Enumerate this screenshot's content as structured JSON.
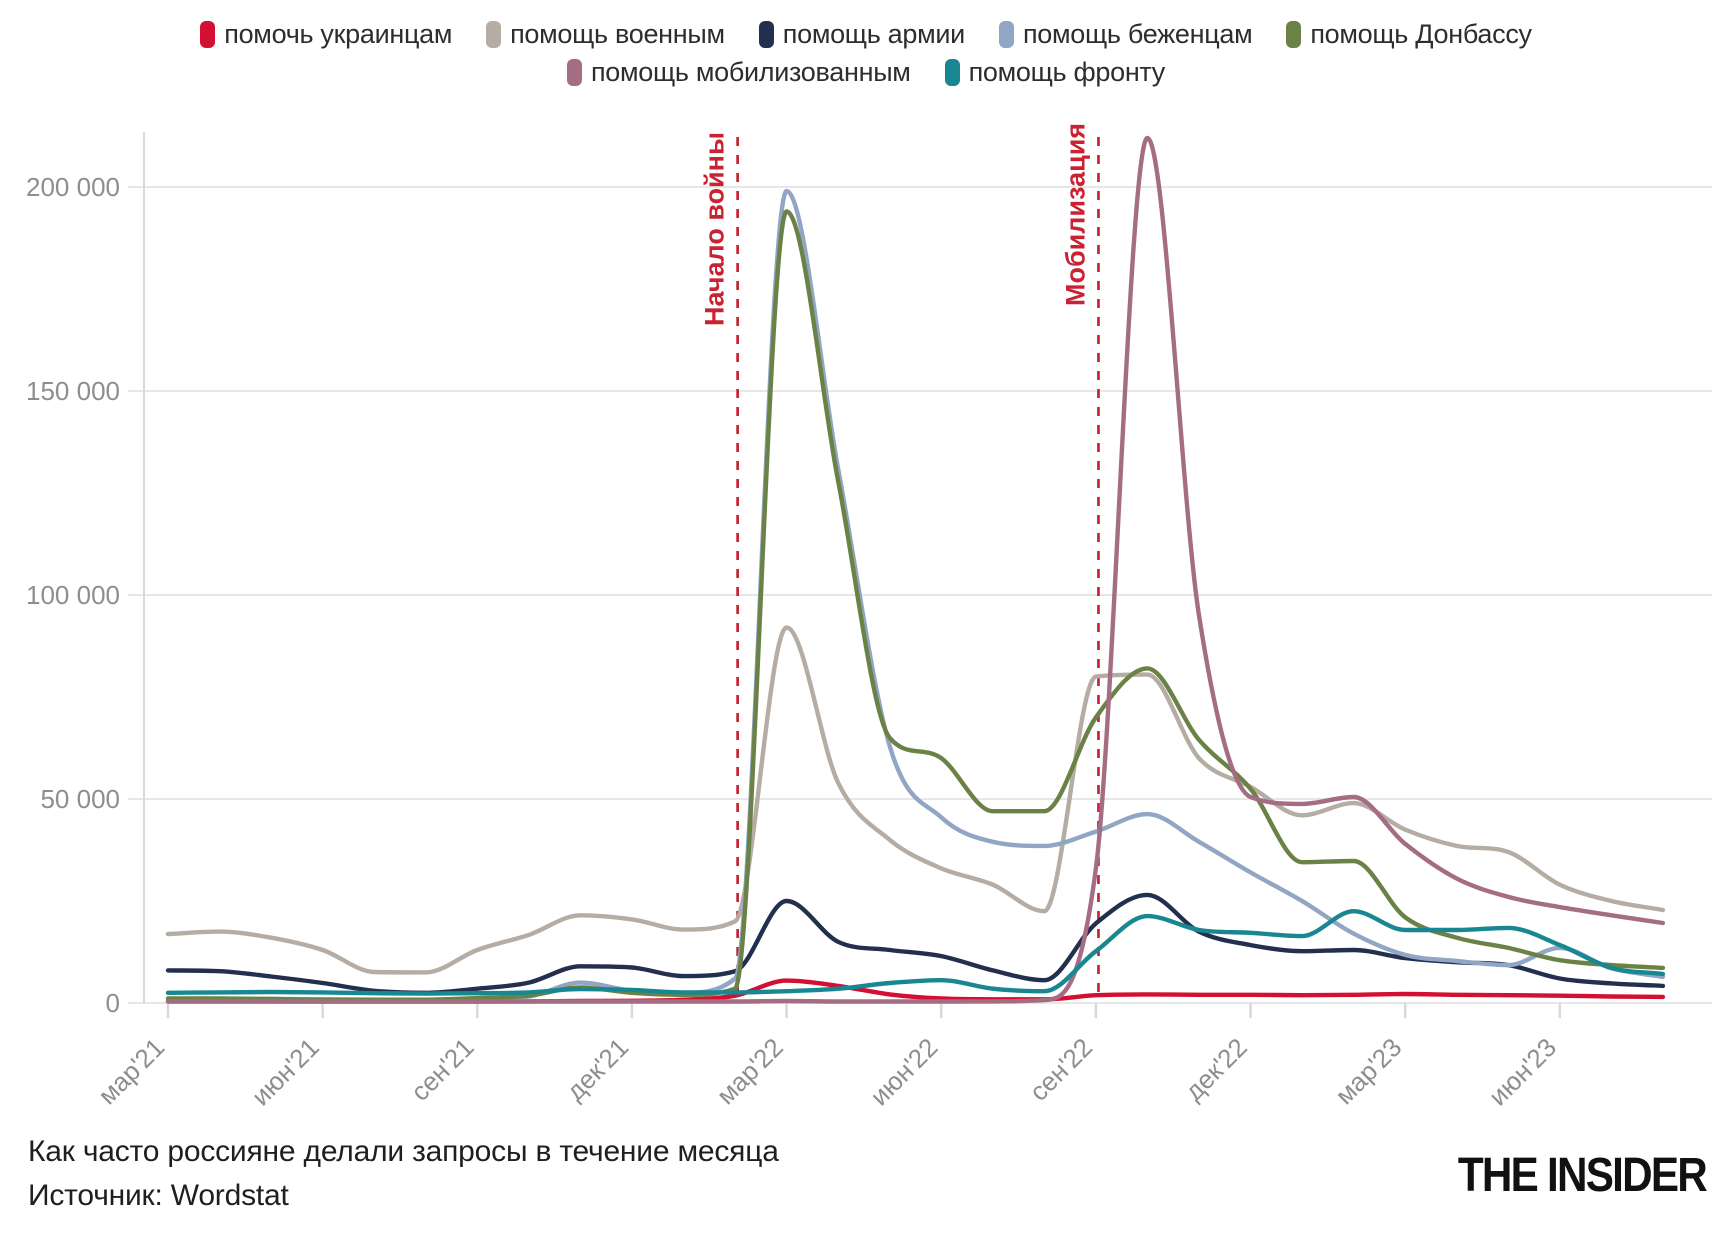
{
  "legend": {
    "rows": [
      [
        {
          "label": "помочь украинцам",
          "color": "#d30f32"
        },
        {
          "label": "помощь военным",
          "color": "#b5aca3"
        },
        {
          "label": "помощь армии",
          "color": "#232f4e"
        },
        {
          "label": "помощь беженцам",
          "color": "#91a6c4"
        },
        {
          "label": "помощь Донбассу",
          "color": "#6a8246"
        }
      ],
      [
        {
          "label": "помощь мобилизованным",
          "color": "#a56d83"
        },
        {
          "label": "помощь фронту",
          "color": "#198791"
        }
      ]
    ]
  },
  "chart_data": {
    "type": "line",
    "x": [
      "мар'21",
      "апр'21",
      "май'21",
      "июн'21",
      "июл'21",
      "авг'21",
      "сен'21",
      "окт'21",
      "ноя'21",
      "дек'21",
      "янв'22",
      "фев'22",
      "мар'22",
      "апр'22",
      "май'22",
      "июн'22",
      "июл'22",
      "авг'22",
      "сен'22",
      "окт'22",
      "ноя'22",
      "дек'22",
      "янв'23",
      "фев'23",
      "мар'23",
      "апр'23",
      "май'23",
      "июн'23",
      "июл'23",
      "авг'23"
    ],
    "x_tick_indices": [
      0,
      3,
      6,
      9,
      12,
      15,
      18,
      21,
      24,
      27
    ],
    "y_ticks": {
      "values": [
        0,
        50000,
        100000,
        150000,
        200000
      ],
      "labels": [
        "0",
        "50 000",
        "100 000",
        "150 000",
        "200 000"
      ]
    },
    "ylim": [
      0,
      215000
    ],
    "grid": "horizontal",
    "legend_position": "top",
    "series": [
      {
        "name": "помочь украинцам",
        "color": "#d30f32",
        "values": [
          400,
          400,
          400,
          350,
          300,
          300,
          350,
          400,
          500,
          550,
          800,
          1800,
          5500,
          4200,
          2100,
          1100,
          900,
          900,
          1900,
          2100,
          2000,
          2000,
          1900,
          2000,
          2200,
          2000,
          1900,
          1800,
          1600,
          1500
        ]
      },
      {
        "name": "помощь военным",
        "color": "#b5aca3",
        "values": [
          16900,
          17500,
          16000,
          13000,
          7600,
          7500,
          13000,
          16700,
          21500,
          20500,
          18000,
          20000,
          92000,
          54000,
          40000,
          33000,
          29000,
          22500,
          80000,
          80500,
          60000,
          53000,
          46000,
          49000,
          42500,
          38500,
          37000,
          29000,
          25000,
          22800
        ]
      },
      {
        "name": "помощь армии",
        "color": "#232f4e",
        "values": [
          8000,
          7800,
          6500,
          4900,
          3000,
          2500,
          3500,
          5000,
          9000,
          8700,
          6600,
          7800,
          25000,
          15000,
          13000,
          11500,
          8000,
          5600,
          19500,
          26500,
          17500,
          14200,
          12700,
          13000,
          11000,
          10000,
          9300,
          6000,
          4800,
          4200
        ]
      },
      {
        "name": "помощь беженцам",
        "color": "#91a6c4",
        "values": [
          1000,
          1000,
          1000,
          900,
          800,
          800,
          1000,
          1600,
          5000,
          3000,
          2500,
          6000,
          199000,
          131000,
          63000,
          45500,
          39500,
          38500,
          42000,
          46300,
          39500,
          32000,
          25000,
          17000,
          11800,
          10300,
          9300,
          13500,
          8500,
          6400
        ]
      },
      {
        "name": "помощь Донбассу",
        "color": "#6a8246",
        "values": [
          1100,
          1100,
          1000,
          800,
          800,
          800,
          1200,
          1800,
          3800,
          2500,
          2000,
          3500,
          194000,
          128000,
          65000,
          60000,
          47000,
          47000,
          70000,
          82000,
          64500,
          52500,
          34500,
          34800,
          21000,
          16000,
          13500,
          10500,
          9300,
          8600
        ]
      },
      {
        "name": "помощь мобилизованным",
        "color": "#a56d83",
        "values": [
          150,
          150,
          200,
          200,
          200,
          200,
          200,
          250,
          300,
          300,
          300,
          300,
          500,
          300,
          300,
          300,
          400,
          700,
          33000,
          212000,
          95000,
          50500,
          48800,
          50500,
          39000,
          30500,
          26000,
          23500,
          21500,
          19600
        ]
      },
      {
        "name": "помощь фронту",
        "color": "#198791",
        "values": [
          2500,
          2600,
          2700,
          2600,
          2400,
          2300,
          2400,
          2600,
          3400,
          3200,
          2600,
          2600,
          2900,
          3500,
          4900,
          5600,
          3500,
          2900,
          12700,
          21300,
          17900,
          17200,
          16400,
          22500,
          17900,
          17900,
          18400,
          14200,
          8600,
          7100
        ]
      }
    ],
    "annotations": [
      {
        "label": "Начало войны",
        "month_index": 11.05,
        "color": "#c92232"
      },
      {
        "label": "Мобилизация",
        "month_index": 18.05,
        "color": "#c92232"
      }
    ]
  },
  "captions": {
    "title": "Как часто россияне делали запросы в течение месяца",
    "source": "Источник: Wordstat"
  },
  "branding": {
    "logo": "THE INSIDER"
  },
  "style_colors": {
    "grid": "#e7e7e7",
    "axis_line": "#d9d9d9",
    "axis_text": "#8e8e8e",
    "annotation": "#c92232"
  }
}
